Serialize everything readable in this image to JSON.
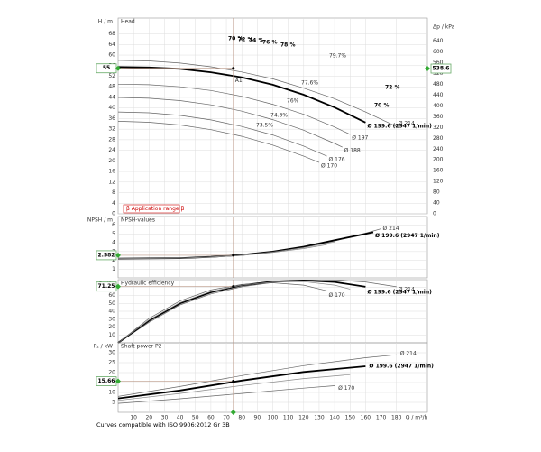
{
  "chart_data": [
    {
      "type": "line",
      "title": "Head",
      "ylabel": "H / m",
      "y2label": "Δp / kPa",
      "ylim": [
        0,
        74
      ],
      "yticks": [
        0,
        4,
        8,
        12,
        16,
        20,
        24,
        28,
        32,
        36,
        40,
        44,
        48,
        52,
        56,
        60,
        64,
        68
      ],
      "y2lim": [
        0,
        726
      ],
      "y2ticks": [
        0,
        40,
        80,
        120,
        160,
        200,
        240,
        280,
        320,
        360,
        400,
        440,
        480,
        520,
        560,
        600,
        640
      ],
      "operating_point": {
        "x": 74.5,
        "value": 55,
        "value2": 538.6,
        "label": "A1"
      },
      "application_range": "β Application range β",
      "annotations": [
        "70 %",
        "72 %",
        "74 %",
        "76 %",
        "78 %",
        "79.7%",
        "77.6%",
        "76%",
        "74.3%",
        "73.5%",
        "72 %",
        "70 %"
      ],
      "series": [
        {
          "name": "Ø 214",
          "color": "#666",
          "x": [
            0,
            20,
            40,
            60,
            80,
            100,
            120,
            140,
            160,
            180
          ],
          "values": [
            58,
            57.8,
            57,
            55.6,
            53.6,
            51,
            47.5,
            43.5,
            38.5,
            33
          ]
        },
        {
          "name": "Ø 199.6 (2947 1/min)",
          "color": "#000",
          "x": [
            0,
            20,
            40,
            60,
            80,
            100,
            120,
            140,
            160
          ],
          "values": [
            55.5,
            55.3,
            54.8,
            53.5,
            51.6,
            48.8,
            45,
            40.2,
            34.5
          ],
          "bold": true
        },
        {
          "name": "Ø 197",
          "color": "#666",
          "x": [
            0,
            20,
            40,
            60,
            80,
            100,
            120,
            140,
            150
          ],
          "values": [
            49,
            48.8,
            48,
            46.6,
            44.4,
            41.4,
            37.6,
            32.8,
            30
          ]
        },
        {
          "name": "Ø 188",
          "color": "#666",
          "x": [
            0,
            20,
            40,
            60,
            80,
            100,
            120,
            140,
            145
          ],
          "values": [
            44,
            43.7,
            42.8,
            41.2,
            38.8,
            35.6,
            31.6,
            26.6,
            25.2
          ]
        },
        {
          "name": "Ø 176",
          "color": "#666",
          "x": [
            0,
            20,
            40,
            60,
            80,
            100,
            120,
            135
          ],
          "values": [
            38.5,
            38.2,
            37.2,
            35.5,
            33,
            29.8,
            25.6,
            21.8
          ]
        },
        {
          "name": "Ø 170",
          "color": "#666",
          "x": [
            0,
            20,
            40,
            60,
            80,
            100,
            120,
            130
          ],
          "values": [
            35,
            34.6,
            33.6,
            31.8,
            29.3,
            26,
            21.8,
            19.4
          ]
        }
      ]
    },
    {
      "type": "line",
      "title": "NPSH-values",
      "ylabel": "NPSH / m",
      "ylim": [
        0,
        7
      ],
      "yticks": [
        1,
        2,
        3,
        4,
        5,
        6
      ],
      "operating_point": {
        "x": 74.5,
        "value": 2.582
      },
      "series": [
        {
          "name": "Ø 214",
          "color": "#666",
          "x": [
            0,
            40,
            60,
            80,
            100,
            120,
            140,
            160,
            170
          ],
          "values": [
            2.2,
            2.25,
            2.38,
            2.6,
            2.95,
            3.5,
            4.2,
            5.1,
            5.6
          ]
        },
        {
          "name": "Ø 199.6 (2947 1/min)",
          "color": "#000",
          "x": [
            0,
            40,
            60,
            80,
            100,
            120,
            140,
            165
          ],
          "values": [
            2.2,
            2.25,
            2.4,
            2.62,
            3,
            3.55,
            4.3,
            5.2
          ],
          "bold": true
        },
        {
          "color": "#888",
          "x": [
            0,
            40,
            60,
            80,
            100,
            120,
            140
          ],
          "values": [
            2.2,
            2.25,
            2.4,
            2.6,
            2.95,
            3.45,
            4.1
          ]
        },
        {
          "color": "#888",
          "x": [
            0,
            40,
            60,
            80,
            100,
            120,
            135
          ],
          "values": [
            2.2,
            2.24,
            2.36,
            2.56,
            2.9,
            3.35,
            3.8
          ]
        }
      ]
    },
    {
      "type": "line",
      "title": "Hydraulic efficiency",
      "ylabel": "η / %",
      "ylim": [
        0,
        80
      ],
      "yticks": [
        10,
        20,
        30,
        40,
        50,
        60,
        70
      ],
      "operating_point": {
        "x": 74.5,
        "value": 71.25
      },
      "series": [
        {
          "name": "Ø 214",
          "color": "#666",
          "x": [
            0,
            20,
            40,
            60,
            80,
            100,
            120,
            140,
            160,
            180
          ],
          "values": [
            0,
            26,
            48,
            62,
            71,
            76.5,
            79.5,
            79.7,
            77,
            71
          ]
        },
        {
          "name": "Ø 199.6 (2947 1/min)",
          "color": "#000",
          "x": [
            0,
            20,
            40,
            60,
            80,
            100,
            120,
            140,
            160
          ],
          "values": [
            0,
            28,
            50,
            64,
            72.8,
            77.5,
            79,
            77,
            71
          ],
          "bold": true
        },
        {
          "color": "#888",
          "x": [
            0,
            20,
            40,
            60,
            80,
            100,
            120,
            140,
            150
          ],
          "values": [
            0,
            29,
            51,
            65,
            73,
            77,
            77.5,
            73,
            68
          ]
        },
        {
          "name": "Ø 170",
          "color": "#666",
          "x": [
            0,
            20,
            40,
            60,
            80,
            100,
            120,
            135
          ],
          "values": [
            0,
            31,
            53,
            67,
            74,
            76,
            73,
            66
          ]
        }
      ]
    },
    {
      "type": "line",
      "title": "Shaft power P2",
      "ylabel": "P₂ / kW",
      "ylim": [
        0,
        35
      ],
      "yticks": [
        5,
        10,
        15,
        20,
        25,
        30
      ],
      "xlabel": "Q / m³/h",
      "xlim": [
        0,
        200
      ],
      "xticks": [
        10,
        20,
        30,
        40,
        50,
        60,
        70,
        80,
        90,
        100,
        110,
        120,
        130,
        140,
        150,
        160,
        170,
        180
      ],
      "operating_point": {
        "x": 74.5,
        "value": 15.66
      },
      "series": [
        {
          "name": "Ø 214",
          "color": "#666",
          "x": [
            0,
            40,
            80,
            120,
            160,
            180
          ],
          "values": [
            8,
            13,
            18.5,
            23.5,
            27.5,
            29
          ]
        },
        {
          "name": "Ø 199.6 (2947 1/min)",
          "color": "#000",
          "x": [
            0,
            40,
            80,
            120,
            160
          ],
          "values": [
            7,
            11,
            16,
            20.3,
            23.2
          ],
          "bold": true
        },
        {
          "color": "#888",
          "x": [
            0,
            40,
            80,
            120,
            150
          ],
          "values": [
            6,
            9.5,
            13.5,
            17,
            19
          ]
        },
        {
          "name": "Ø 170",
          "color": "#666",
          "x": [
            0,
            40,
            80,
            120,
            140
          ],
          "values": [
            4.5,
            6.8,
            9.5,
            12.2,
            13.4
          ]
        }
      ]
    }
  ],
  "footer": "Curves compatible with ISO 9906:2012 Gr 3B"
}
